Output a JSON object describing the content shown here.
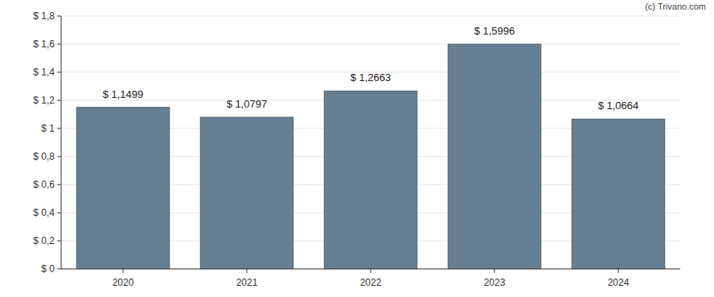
{
  "chart_data": {
    "type": "bar",
    "annotations": [
      "(c) Trivano.com"
    ],
    "categories": [
      "2020",
      "2021",
      "2022",
      "2023",
      "2024"
    ],
    "values": [
      1.1499,
      1.0797,
      1.2663,
      1.5996,
      1.0664
    ],
    "value_labels": [
      "$ 1,1499",
      "$ 1,0797",
      "$ 1,2663",
      "$ 1,5996",
      "$ 1,0664"
    ],
    "color": "#667f93",
    "ylim": [
      0,
      1.8
    ],
    "yticks": [
      {
        "value": 0,
        "label": "$ 0"
      },
      {
        "value": 0.2,
        "label": "$ 0,2"
      },
      {
        "value": 0.4,
        "label": "$ 0,4"
      },
      {
        "value": 0.6,
        "label": "$ 0,6"
      },
      {
        "value": 0.8,
        "label": "$ 0,8"
      },
      {
        "value": 1,
        "label": "$ 1"
      },
      {
        "value": 1.2,
        "label": "$ 1,2"
      },
      {
        "value": 1.4,
        "label": "$ 1,4"
      },
      {
        "value": 1.6,
        "label": "$ 1,6"
      },
      {
        "value": 1.8,
        "label": "$ 1,8"
      }
    ],
    "grid": true,
    "data_labels": true
  }
}
